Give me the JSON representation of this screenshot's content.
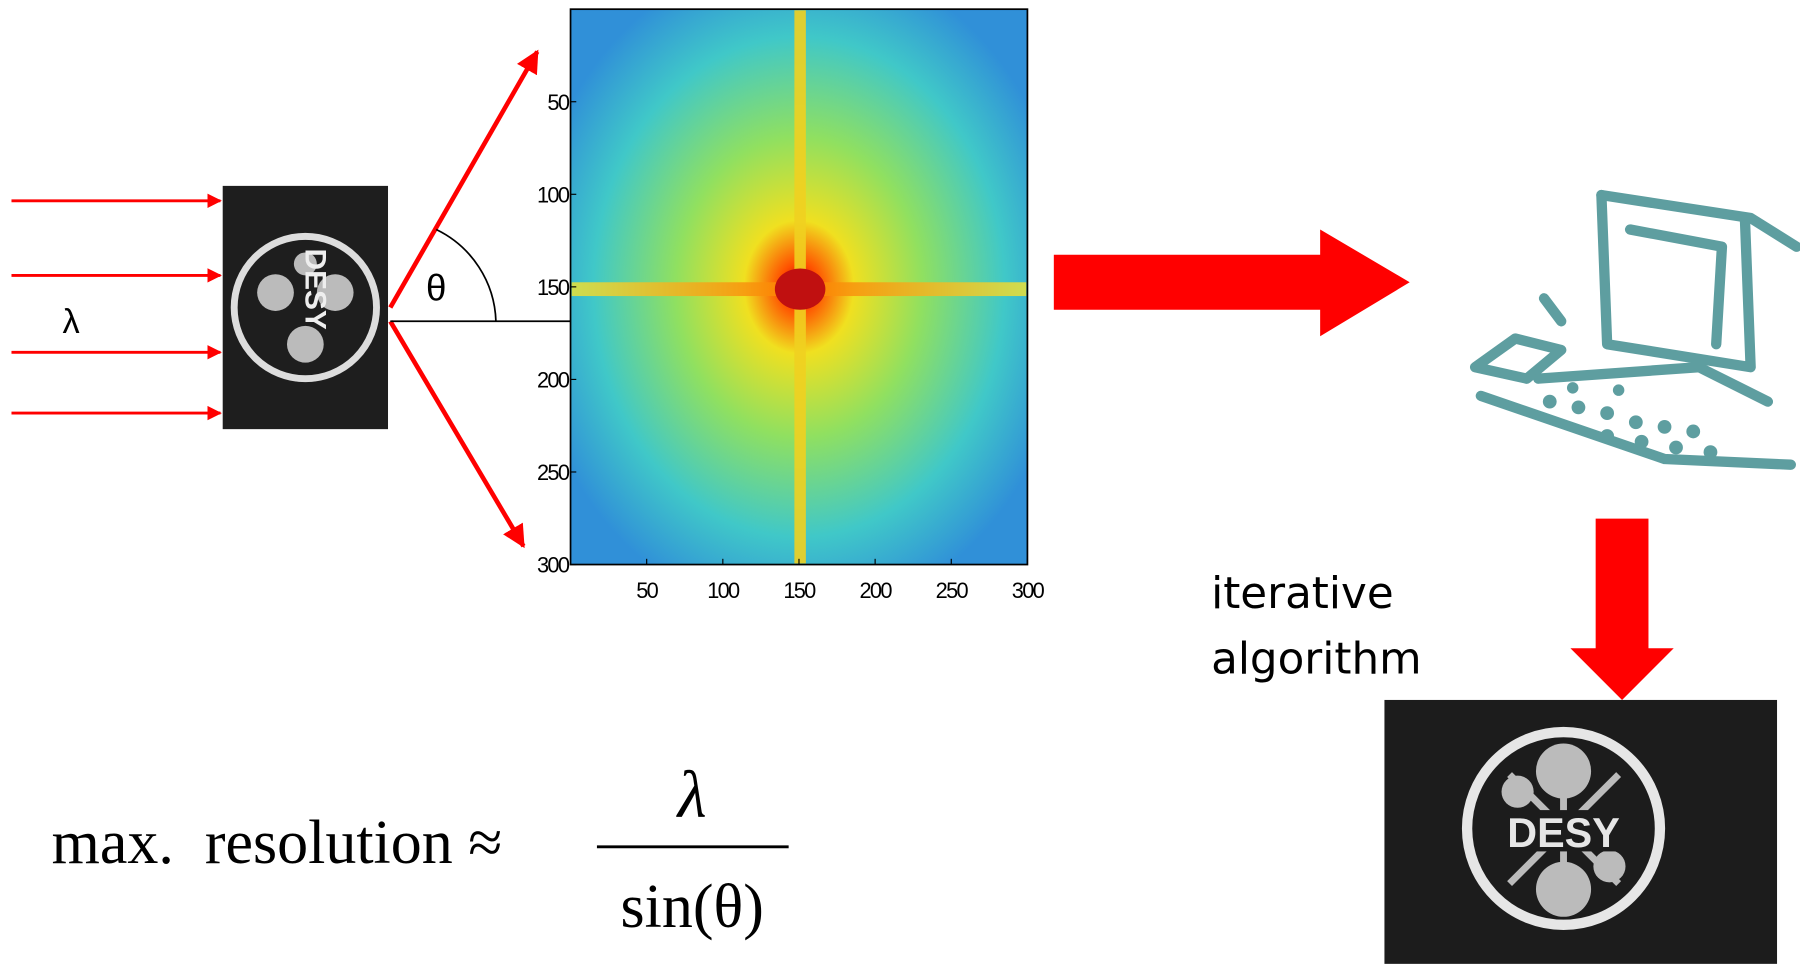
{
  "setup": {
    "wavelength_label": "λ",
    "angle_label": "θ",
    "sample_logo": "DESY"
  },
  "pattern": {
    "xlim": [
      0,
      300
    ],
    "ylim": [
      0,
      300
    ],
    "xticks": [
      50,
      100,
      150,
      200,
      250,
      300
    ],
    "yticks": [
      50,
      100,
      150,
      200,
      250,
      300
    ]
  },
  "process": {
    "label_lines": [
      "iterative",
      "algorithm"
    ]
  },
  "reconstruction": {
    "logo": "DESY"
  },
  "formula": {
    "lhs": "max.  resolution ≈",
    "numerator": "λ",
    "denominator": "sin(θ)"
  }
}
